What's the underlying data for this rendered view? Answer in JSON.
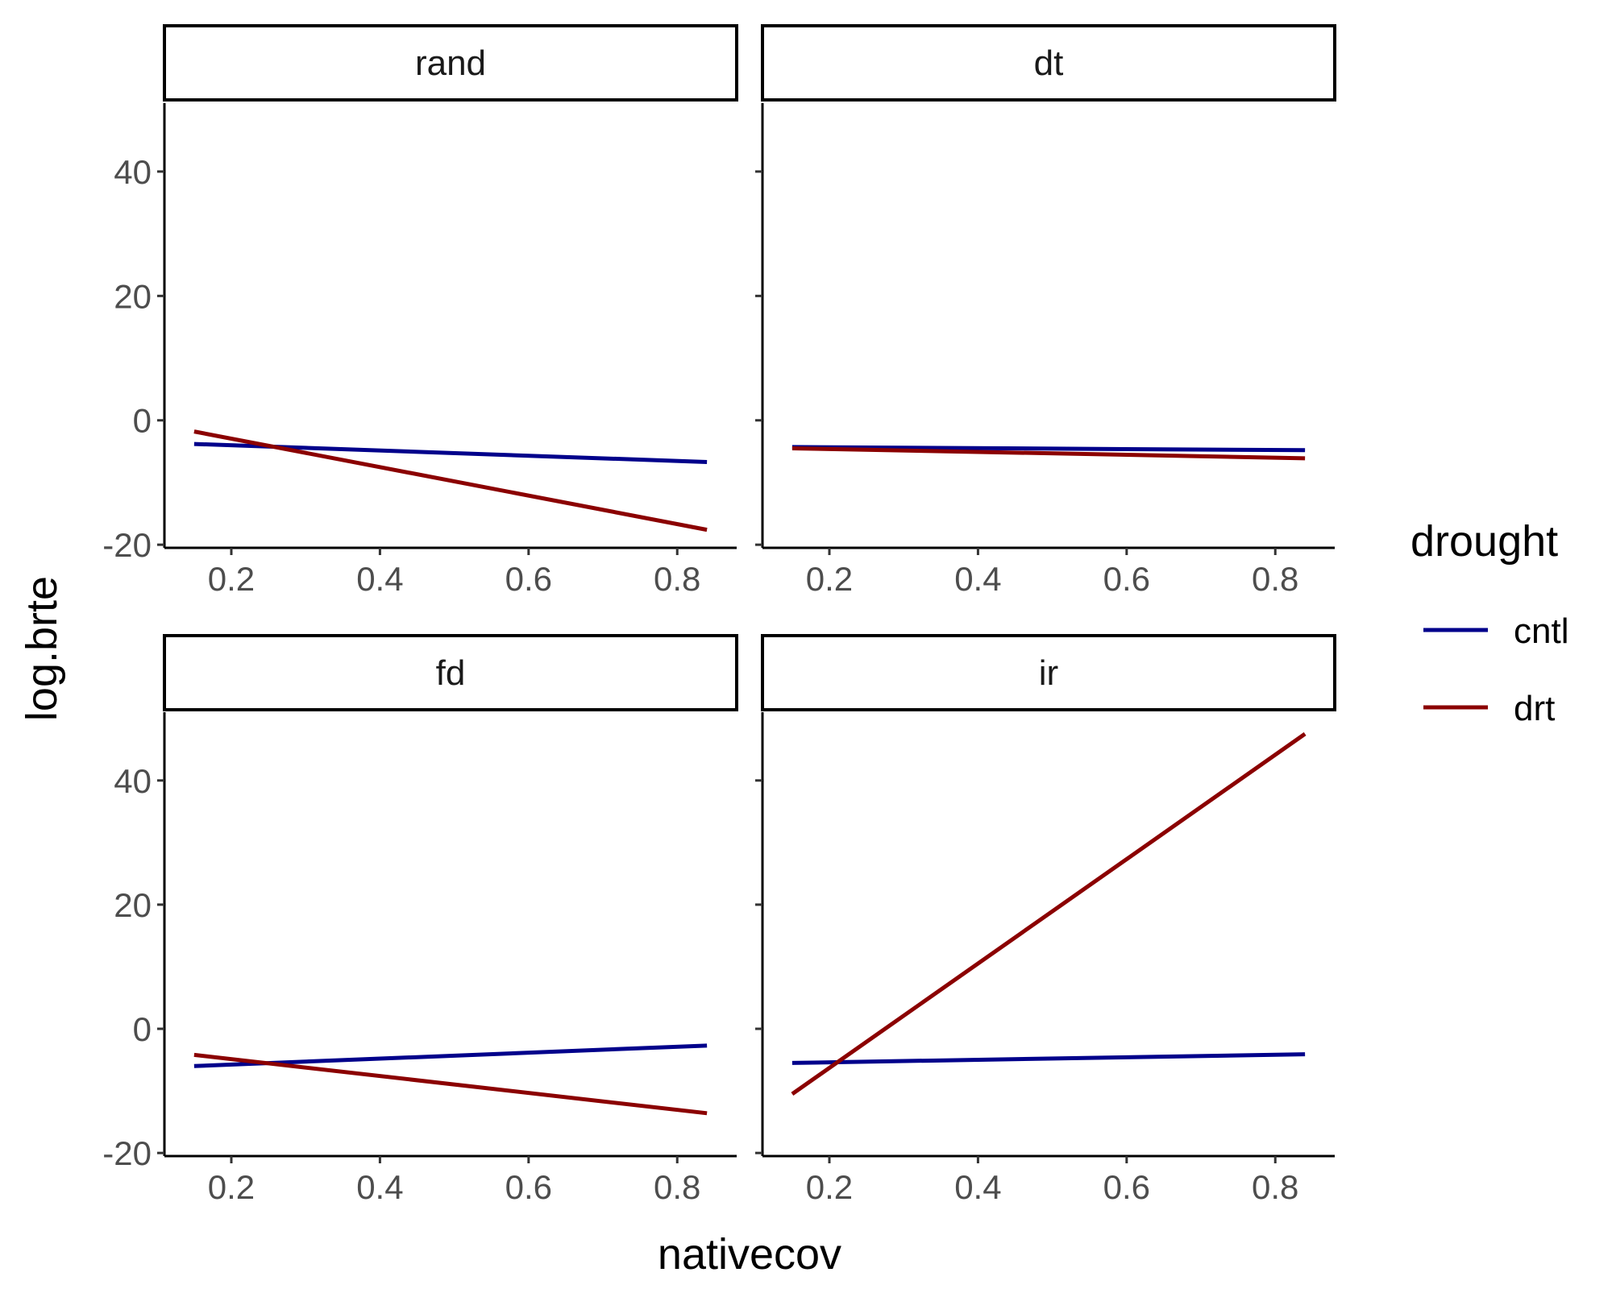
{
  "chart_data": {
    "type": "line",
    "xlabel": "nativecov",
    "ylabel": "log.brte",
    "xlim": [
      0.11,
      0.88
    ],
    "ylim": [
      -20.5,
      51
    ],
    "x_ticks": [
      0.2,
      0.4,
      0.6,
      0.8
    ],
    "x_tick_labels": [
      "0.2",
      "0.4",
      "0.6",
      "0.8"
    ],
    "y_ticks": [
      -20,
      0,
      20,
      40
    ],
    "y_tick_labels": [
      "-20",
      "0",
      "20",
      "40"
    ],
    "grid": false,
    "legend": {
      "title": "drought",
      "position": "right",
      "entries": [
        {
          "label": "cntl",
          "color": "#00008B"
        },
        {
          "label": "drt",
          "color": "#8B0000"
        }
      ]
    },
    "panels": [
      {
        "strip": "rand",
        "series": [
          {
            "name": "cntl",
            "color": "#00008B",
            "x": [
              0.15,
              0.84
            ],
            "y": [
              -3.8,
              -6.7
            ]
          },
          {
            "name": "drt",
            "color": "#8B0000",
            "x": [
              0.15,
              0.84
            ],
            "y": [
              -1.8,
              -17.6
            ]
          }
        ]
      },
      {
        "strip": "dt",
        "series": [
          {
            "name": "cntl",
            "color": "#00008B",
            "x": [
              0.15,
              0.84
            ],
            "y": [
              -4.3,
              -4.8
            ]
          },
          {
            "name": "drt",
            "color": "#8B0000",
            "x": [
              0.15,
              0.84
            ],
            "y": [
              -4.5,
              -6.1
            ]
          }
        ]
      },
      {
        "strip": "fd",
        "series": [
          {
            "name": "cntl",
            "color": "#00008B",
            "x": [
              0.15,
              0.84
            ],
            "y": [
              -6.0,
              -2.7
            ]
          },
          {
            "name": "drt",
            "color": "#8B0000",
            "x": [
              0.15,
              0.84
            ],
            "y": [
              -4.2,
              -13.6
            ]
          }
        ]
      },
      {
        "strip": "ir",
        "series": [
          {
            "name": "cntl",
            "color": "#00008B",
            "x": [
              0.15,
              0.84
            ],
            "y": [
              -5.5,
              -4.1
            ]
          },
          {
            "name": "drt",
            "color": "#8B0000",
            "x": [
              0.15,
              0.84
            ],
            "y": [
              -10.5,
              47.5
            ]
          }
        ]
      }
    ]
  }
}
